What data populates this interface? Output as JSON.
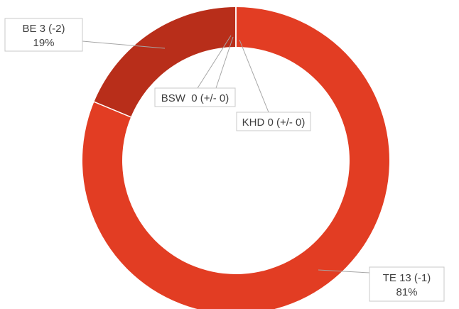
{
  "chart_data": {
    "type": "pie",
    "variant": "doughnut",
    "slices": [
      {
        "name": "TE",
        "seats": 13,
        "change": "-1",
        "percent": 81,
        "color": "#e23d23",
        "label_line1": "TE 13 (-1)",
        "label_line2": "81%"
      },
      {
        "name": "BE",
        "seats": 3,
        "change": "-2",
        "percent": 19,
        "color": "#b82e1a",
        "label_line1": "BE 3 (-2)",
        "label_line2": "19%"
      },
      {
        "name": "BSW",
        "seats": 0,
        "change": "+/- 0",
        "percent": 0,
        "color": "#e23d23",
        "label_line1": "BSW  0 (+/- 0)",
        "label_line2": ""
      },
      {
        "name": "KHD",
        "seats": 0,
        "change": "+/- 0",
        "percent": 0,
        "color": "#e23d23",
        "label_line1": "KHD 0 (+/- 0)",
        "label_line2": ""
      }
    ],
    "start_angle_deg": 0,
    "direction": "clockwise",
    "separator_color": "#ffffff"
  }
}
